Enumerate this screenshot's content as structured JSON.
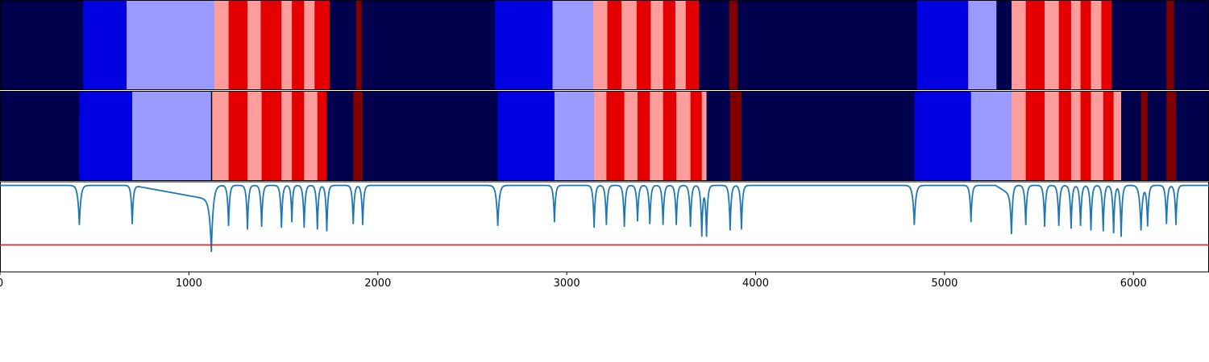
{
  "chart_data": [
    {
      "type": "heatmap",
      "x_range": [
        0,
        6400
      ],
      "colors": {
        "0": "#00004c",
        "1": "#0000e0",
        "2": "#9a9aff",
        "3": "#ff9c9c",
        "4": "#e50000",
        "5": "#800000"
      },
      "segments": [
        [
          0,
          440,
          0
        ],
        [
          440,
          670,
          1
        ],
        [
          670,
          1135,
          2
        ],
        [
          1135,
          1210,
          3
        ],
        [
          1210,
          1310,
          4
        ],
        [
          1310,
          1380,
          3
        ],
        [
          1380,
          1490,
          4
        ],
        [
          1490,
          1545,
          3
        ],
        [
          1545,
          1610,
          4
        ],
        [
          1610,
          1665,
          3
        ],
        [
          1665,
          1745,
          4
        ],
        [
          1745,
          1885,
          0
        ],
        [
          1885,
          1915,
          5
        ],
        [
          1915,
          2620,
          0
        ],
        [
          2620,
          2925,
          1
        ],
        [
          2925,
          3140,
          2
        ],
        [
          3140,
          3215,
          3
        ],
        [
          3215,
          3290,
          4
        ],
        [
          3290,
          3370,
          3
        ],
        [
          3370,
          3445,
          4
        ],
        [
          3445,
          3510,
          3
        ],
        [
          3510,
          3575,
          4
        ],
        [
          3575,
          3630,
          3
        ],
        [
          3630,
          3700,
          4
        ],
        [
          3700,
          3860,
          0
        ],
        [
          3860,
          3905,
          5
        ],
        [
          3905,
          4855,
          0
        ],
        [
          4855,
          5125,
          1
        ],
        [
          5125,
          5275,
          2
        ],
        [
          5275,
          5355,
          0
        ],
        [
          5355,
          5430,
          3
        ],
        [
          5430,
          5530,
          4
        ],
        [
          5530,
          5605,
          3
        ],
        [
          5605,
          5670,
          4
        ],
        [
          5670,
          5720,
          3
        ],
        [
          5720,
          5775,
          4
        ],
        [
          5775,
          5830,
          3
        ],
        [
          5830,
          5885,
          4
        ],
        [
          5885,
          6175,
          0
        ],
        [
          6175,
          6215,
          5
        ],
        [
          6215,
          6400,
          0
        ]
      ]
    },
    {
      "type": "heatmap",
      "x_range": [
        0,
        6400
      ],
      "colors": {
        "0": "#00004c",
        "1": "#0000e0",
        "2": "#9a9aff",
        "3": "#ff9c9c",
        "4": "#e50000",
        "5": "#800000"
      },
      "segments": [
        [
          0,
          420,
          0
        ],
        [
          420,
          700,
          1
        ],
        [
          700,
          1120,
          2
        ],
        [
          1120,
          1210,
          3
        ],
        [
          1210,
          1310,
          4
        ],
        [
          1310,
          1385,
          3
        ],
        [
          1385,
          1490,
          4
        ],
        [
          1490,
          1545,
          3
        ],
        [
          1545,
          1610,
          4
        ],
        [
          1610,
          1680,
          3
        ],
        [
          1680,
          1730,
          4
        ],
        [
          1730,
          1870,
          0
        ],
        [
          1870,
          1920,
          5
        ],
        [
          1920,
          2635,
          0
        ],
        [
          2635,
          2935,
          1
        ],
        [
          2935,
          3145,
          2
        ],
        [
          3145,
          3210,
          3
        ],
        [
          3210,
          3305,
          4
        ],
        [
          3305,
          3375,
          3
        ],
        [
          3375,
          3440,
          4
        ],
        [
          3440,
          3510,
          3
        ],
        [
          3510,
          3580,
          4
        ],
        [
          3580,
          3655,
          3
        ],
        [
          3655,
          3715,
          4
        ],
        [
          3715,
          3740,
          3
        ],
        [
          3740,
          3865,
          0
        ],
        [
          3865,
          3925,
          5
        ],
        [
          3925,
          4840,
          0
        ],
        [
          4840,
          5140,
          1
        ],
        [
          5140,
          5355,
          2
        ],
        [
          5355,
          5430,
          3
        ],
        [
          5430,
          5530,
          4
        ],
        [
          5530,
          5605,
          3
        ],
        [
          5605,
          5670,
          4
        ],
        [
          5670,
          5720,
          3
        ],
        [
          5720,
          5775,
          4
        ],
        [
          5775,
          5840,
          3
        ],
        [
          5840,
          5895,
          4
        ],
        [
          5895,
          5935,
          3
        ],
        [
          5935,
          6040,
          0
        ],
        [
          6040,
          6075,
          5
        ],
        [
          6075,
          6175,
          0
        ],
        [
          6175,
          6225,
          5
        ],
        [
          6225,
          6400,
          0
        ]
      ],
      "marker_x": 1120
    },
    {
      "type": "line",
      "x_range": [
        0,
        6400
      ],
      "y_range": [
        0,
        1
      ],
      "xticks": [
        0,
        1000,
        2000,
        3000,
        4000,
        5000,
        6000
      ],
      "xtick_labels": [
        "0",
        "1000",
        "2000",
        "3000",
        "4000",
        "5000",
        "6000"
      ],
      "threshold": 0.3,
      "line_color": "#1f77b4",
      "threshold_color": "#e41a1c",
      "baseline": 0.96,
      "dips": [
        [
          420,
          0.52,
          8
        ],
        [
          700,
          0.53,
          6
        ],
        [
          1120,
          0.32,
          10
        ],
        [
          1210,
          0.51,
          6
        ],
        [
          1310,
          0.47,
          6
        ],
        [
          1385,
          0.5,
          6
        ],
        [
          1490,
          0.49,
          6
        ],
        [
          1545,
          0.55,
          5
        ],
        [
          1610,
          0.49,
          6
        ],
        [
          1680,
          0.47,
          6
        ],
        [
          1730,
          0.45,
          6
        ],
        [
          1870,
          0.53,
          6
        ],
        [
          1920,
          0.52,
          6
        ],
        [
          2635,
          0.51,
          8
        ],
        [
          2935,
          0.55,
          6
        ],
        [
          3145,
          0.49,
          6
        ],
        [
          3210,
          0.52,
          6
        ],
        [
          3305,
          0.5,
          6
        ],
        [
          3375,
          0.56,
          6
        ],
        [
          3440,
          0.53,
          6
        ],
        [
          3510,
          0.52,
          6
        ],
        [
          3580,
          0.52,
          6
        ],
        [
          3655,
          0.5,
          6
        ],
        [
          3715,
          0.4,
          6
        ],
        [
          3740,
          0.4,
          6
        ],
        [
          3865,
          0.46,
          6
        ],
        [
          3925,
          0.47,
          6
        ],
        [
          4840,
          0.52,
          8
        ],
        [
          5140,
          0.55,
          6
        ],
        [
          5355,
          0.45,
          6
        ],
        [
          5430,
          0.52,
          6
        ],
        [
          5530,
          0.5,
          6
        ],
        [
          5605,
          0.51,
          6
        ],
        [
          5670,
          0.48,
          6
        ],
        [
          5720,
          0.51,
          6
        ],
        [
          5775,
          0.46,
          6
        ],
        [
          5840,
          0.45,
          6
        ],
        [
          5895,
          0.43,
          6
        ],
        [
          5935,
          0.39,
          6
        ],
        [
          6040,
          0.46,
          8
        ],
        [
          6075,
          0.51,
          6
        ],
        [
          6175,
          0.53,
          6
        ],
        [
          6225,
          0.52,
          6
        ]
      ],
      "ramps": [
        [
          700,
          1120,
          0.8
        ],
        [
          5270,
          5355,
          0.85
        ]
      ]
    }
  ]
}
